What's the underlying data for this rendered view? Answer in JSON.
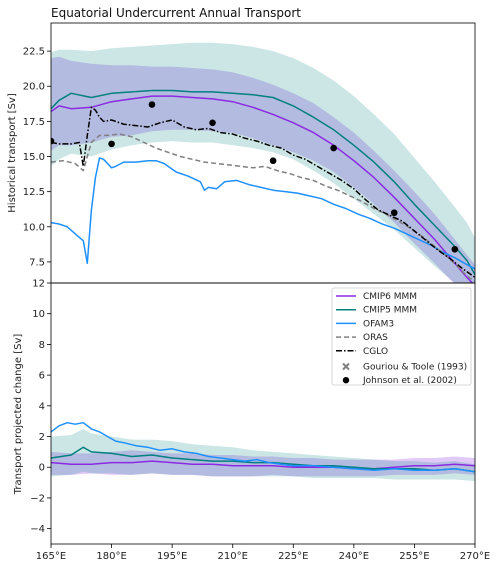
{
  "chart_data": {
    "type": "line",
    "title": "Equatorial Undercurrent Annual Transport",
    "xlim": [
      165,
      270
    ],
    "x_ticks": [
      165,
      180,
      195,
      210,
      225,
      240,
      255,
      270
    ],
    "x_tick_labels": [
      "165°E",
      "180°E",
      "195°E",
      "210°E",
      "225°E",
      "240°E",
      "255°E",
      "270°E"
    ],
    "legend_position": "upper-right (bottom panel)",
    "colors": {
      "CMIP6 MMM": "#8a2be2",
      "CMIP5 MMM": "#008080",
      "OFAM3": "#1e90ff",
      "ORAS": "#808080",
      "CGLO": "#000000",
      "points": "#000000"
    },
    "top": {
      "ylabel": "Historical transport [Sv]",
      "ylim": [
        6,
        24.5
      ],
      "y_ticks": [
        7.5,
        10.0,
        12.5,
        15.0,
        17.5,
        20.0,
        22.5
      ],
      "y_tick_labels": [
        "7.5",
        "10.0",
        "12.5",
        "15.0",
        "17.5",
        "20.0",
        "22.5"
      ],
      "series": [
        {
          "name": "CMIP6 MMM",
          "style": "solid",
          "x": [
            165,
            167,
            170,
            175,
            180,
            185,
            190,
            195,
            200,
            205,
            210,
            215,
            220,
            225,
            230,
            235,
            240,
            245,
            250,
            255,
            260,
            265,
            268,
            270
          ],
          "y": [
            18.2,
            18.6,
            18.4,
            18.5,
            18.9,
            19.1,
            19.3,
            19.3,
            19.2,
            19.1,
            18.9,
            18.5,
            18.0,
            17.4,
            16.7,
            15.8,
            14.7,
            13.5,
            12.1,
            10.6,
            9.1,
            7.4,
            6.4,
            5.8
          ],
          "lower": [
            15.4,
            15.8,
            15.8,
            16.0,
            16.4,
            16.5,
            16.8,
            16.9,
            16.9,
            16.8,
            16.7,
            16.3,
            15.8,
            15.3,
            14.7,
            13.9,
            12.8,
            11.6,
            10.3,
            8.8,
            7.4,
            5.9,
            5.0,
            4.5
          ],
          "upper": [
            22.0,
            22.1,
            21.8,
            21.6,
            21.5,
            21.5,
            21.4,
            21.4,
            21.3,
            21.2,
            21.0,
            20.6,
            20.1,
            19.5,
            18.8,
            17.8,
            16.7,
            15.4,
            14.0,
            12.5,
            10.9,
            9.1,
            8.0,
            7.3
          ]
        },
        {
          "name": "CMIP5 MMM",
          "style": "solid",
          "x": [
            165,
            167,
            170,
            175,
            180,
            185,
            190,
            195,
            200,
            205,
            210,
            215,
            220,
            225,
            230,
            235,
            240,
            245,
            250,
            255,
            260,
            265,
            268,
            270
          ],
          "y": [
            18.4,
            19.0,
            19.5,
            19.2,
            19.5,
            19.6,
            19.7,
            19.7,
            19.6,
            19.6,
            19.5,
            19.4,
            19.2,
            18.6,
            17.8,
            16.9,
            15.8,
            14.6,
            13.2,
            11.6,
            10.1,
            8.6,
            7.6,
            6.6
          ],
          "lower": [
            14.3,
            14.8,
            15.2,
            15.0,
            15.5,
            15.8,
            16.0,
            16.1,
            16.0,
            16.0,
            15.8,
            15.6,
            15.3,
            14.8,
            14.0,
            13.1,
            12.0,
            10.9,
            9.8,
            8.5,
            7.2,
            6.0,
            5.3,
            4.7
          ],
          "upper": [
            22.4,
            22.6,
            22.6,
            22.5,
            22.7,
            22.8,
            22.9,
            23.0,
            23.1,
            23.1,
            23.0,
            22.8,
            22.5,
            22.0,
            21.3,
            20.4,
            19.3,
            18.0,
            16.6,
            14.9,
            13.2,
            11.4,
            10.3,
            9.2
          ]
        },
        {
          "name": "OFAM3",
          "style": "solid",
          "x": [
            165,
            167,
            169,
            171,
            173,
            174,
            175,
            176,
            177,
            178,
            179,
            180,
            181,
            183,
            186,
            189,
            191,
            193,
            196,
            199,
            202,
            203,
            204,
            206,
            208,
            211,
            214,
            217,
            220,
            223,
            226,
            229,
            232,
            235,
            238,
            241,
            244,
            247,
            250,
            253,
            256,
            259,
            262,
            265,
            268,
            270
          ],
          "y": [
            10.3,
            10.2,
            10.0,
            9.5,
            9.0,
            7.4,
            11.2,
            13.5,
            14.9,
            14.8,
            14.5,
            14.2,
            14.3,
            14.6,
            14.6,
            14.7,
            14.7,
            14.5,
            13.9,
            13.6,
            13.2,
            12.6,
            12.8,
            12.7,
            13.2,
            13.3,
            13.0,
            12.8,
            12.6,
            12.5,
            12.4,
            12.2,
            12.0,
            11.6,
            11.3,
            10.9,
            10.6,
            10.2,
            9.9,
            9.5,
            9.1,
            8.7,
            8.2,
            7.8,
            7.3,
            7.0
          ]
        },
        {
          "name": "ORAS",
          "style": "dashed",
          "x": [
            165,
            168,
            171,
            173,
            174,
            175,
            177,
            179,
            182,
            185,
            188,
            191,
            194,
            197,
            200,
            203,
            206,
            209,
            212,
            215,
            218,
            221,
            224,
            227,
            230,
            233,
            236,
            239,
            242,
            245,
            248,
            251,
            254,
            257,
            260,
            263,
            266,
            268,
            270
          ],
          "y": [
            14.6,
            14.7,
            14.5,
            14.0,
            15.0,
            16.0,
            16.5,
            16.5,
            16.6,
            16.4,
            16.0,
            15.6,
            15.3,
            15.0,
            14.8,
            14.6,
            14.5,
            14.4,
            14.3,
            14.2,
            14.3,
            14.0,
            13.8,
            13.5,
            13.3,
            12.9,
            12.6,
            12.2,
            11.8,
            11.3,
            10.9,
            10.4,
            9.9,
            9.3,
            8.6,
            7.9,
            7.1,
            6.5,
            6.1
          ]
        },
        {
          "name": "CGLO",
          "style": "dashdot",
          "x": [
            165,
            167,
            170,
            172,
            173,
            174,
            175,
            176,
            177,
            178,
            180,
            183,
            186,
            189,
            192,
            195,
            198,
            201,
            204,
            207,
            210,
            213,
            216,
            219,
            222,
            225,
            228,
            231,
            234,
            237,
            240,
            243,
            246,
            249,
            252,
            255,
            258,
            261,
            264,
            267,
            270
          ],
          "y": [
            16.0,
            15.9,
            15.9,
            16.0,
            14.3,
            16.5,
            18.5,
            18.3,
            17.8,
            17.5,
            17.6,
            17.3,
            17.2,
            17.1,
            17.4,
            17.6,
            17.1,
            16.9,
            17.0,
            16.7,
            16.6,
            16.3,
            16.1,
            15.8,
            15.6,
            15.1,
            14.8,
            14.3,
            13.8,
            13.3,
            12.7,
            11.9,
            11.2,
            10.8,
            10.4,
            9.7,
            9.0,
            8.3,
            7.7,
            7.0,
            6.4
          ]
        }
      ],
      "points": {
        "name": "Johnson et al. (2002)",
        "x": [
          165,
          180,
          190,
          205,
          220,
          235,
          250,
          265
        ],
        "y": [
          16.1,
          15.9,
          18.7,
          17.4,
          14.7,
          15.6,
          11.0,
          8.4
        ]
      }
    },
    "bottom": {
      "ylabel": "Transport projected change [Sv]",
      "ylim": [
        -5,
        12
      ],
      "y_ticks": [
        -4,
        -2,
        0,
        2,
        4,
        6,
        8,
        10,
        12
      ],
      "y_tick_labels": [
        "−4",
        "−2",
        "0",
        "2",
        "4",
        "6",
        "8",
        "10",
        "12"
      ],
      "series": [
        {
          "name": "CMIP6 MMM",
          "style": "solid",
          "x": [
            165,
            170,
            175,
            180,
            185,
            190,
            195,
            200,
            205,
            210,
            215,
            220,
            225,
            230,
            235,
            240,
            245,
            250,
            255,
            260,
            265,
            270
          ],
          "y": [
            0.3,
            0.2,
            0.2,
            0.3,
            0.3,
            0.4,
            0.3,
            0.2,
            0.2,
            0.1,
            0.1,
            0.1,
            0.0,
            0.0,
            0.0,
            -0.1,
            -0.1,
            0.0,
            0.1,
            0.1,
            0.2,
            0.1
          ],
          "lower": [
            -0.5,
            -0.5,
            -0.4,
            -0.5,
            -0.5,
            -0.4,
            -0.5,
            -0.5,
            -0.6,
            -0.6,
            -0.6,
            -0.5,
            -0.6,
            -0.6,
            -0.6,
            -0.6,
            -0.6,
            -0.5,
            -0.5,
            -0.5,
            -0.4,
            -0.5
          ],
          "upper": [
            1.0,
            0.9,
            0.9,
            1.0,
            1.1,
            1.0,
            0.9,
            0.9,
            0.8,
            0.8,
            0.7,
            0.7,
            0.6,
            0.6,
            0.5,
            0.5,
            0.5,
            0.5,
            0.6,
            0.6,
            0.7,
            0.6
          ]
        },
        {
          "name": "CMIP5 MMM",
          "style": "solid",
          "x": [
            165,
            170,
            173,
            175,
            180,
            185,
            190,
            195,
            200,
            205,
            210,
            215,
            220,
            225,
            230,
            235,
            240,
            245,
            250,
            255,
            260,
            265,
            270
          ],
          "y": [
            0.6,
            0.8,
            1.3,
            1.0,
            0.9,
            0.7,
            0.8,
            0.6,
            0.5,
            0.4,
            0.4,
            0.3,
            0.3,
            0.2,
            0.1,
            0.1,
            0.0,
            -0.1,
            -0.1,
            -0.1,
            -0.2,
            -0.1,
            -0.3
          ],
          "lower": [
            -0.6,
            -0.5,
            -0.3,
            -0.4,
            -0.4,
            -0.5,
            -0.4,
            -0.5,
            -0.5,
            -0.6,
            -0.6,
            -0.6,
            -0.6,
            -0.6,
            -0.7,
            -0.7,
            -0.7,
            -0.7,
            -0.8,
            -0.8,
            -0.8,
            -0.8,
            -0.9
          ],
          "upper": [
            2.0,
            2.1,
            2.5,
            2.2,
            2.0,
            1.8,
            1.8,
            1.7,
            1.5,
            1.4,
            1.3,
            1.1,
            1.0,
            0.9,
            0.8,
            0.7,
            0.6,
            0.5,
            0.4,
            0.4,
            0.3,
            0.4,
            0.2
          ]
        },
        {
          "name": "OFAM3",
          "style": "solid",
          "x": [
            165,
            167,
            169,
            171,
            173,
            175,
            177,
            179,
            181,
            183,
            186,
            189,
            192,
            195,
            198,
            201,
            204,
            207,
            210,
            213,
            216,
            219,
            222,
            225,
            230,
            235,
            240,
            245,
            250,
            255,
            260,
            265,
            270
          ],
          "y": [
            2.3,
            2.7,
            2.9,
            2.8,
            2.9,
            2.5,
            2.3,
            2.0,
            1.7,
            1.6,
            1.4,
            1.3,
            1.1,
            1.2,
            1.0,
            0.9,
            0.7,
            0.6,
            0.5,
            0.4,
            0.5,
            0.3,
            0.2,
            0.1,
            0.1,
            0.0,
            -0.1,
            -0.2,
            -0.1,
            -0.2,
            -0.2,
            -0.1,
            -0.3
          ]
        },
        {
          "name": "ORAS",
          "style": "dashed",
          "x": [],
          "y": []
        },
        {
          "name": "CGLO",
          "style": "dashdot",
          "x": [],
          "y": []
        }
      ],
      "points": {
        "name": "Johnson et al. (2002)",
        "x": [],
        "y": []
      }
    },
    "legend": [
      {
        "label": "CMIP6 MMM",
        "marker": "line",
        "style": "solid",
        "color": "#8a2be2"
      },
      {
        "label": "CMIP5 MMM",
        "marker": "line",
        "style": "solid",
        "color": "#008080"
      },
      {
        "label": "OFAM3",
        "marker": "line",
        "style": "solid",
        "color": "#1e90ff"
      },
      {
        "label": "ORAS",
        "marker": "line",
        "style": "dashed",
        "color": "#808080"
      },
      {
        "label": "CGLO",
        "marker": "line",
        "style": "dashdot",
        "color": "#000000"
      },
      {
        "label": "Gouriou & Toole (1993)",
        "marker": "x",
        "style": "",
        "color": "#808080"
      },
      {
        "label": "Johnson et al. (2002)",
        "marker": "dot",
        "style": "",
        "color": "#000000"
      }
    ]
  }
}
